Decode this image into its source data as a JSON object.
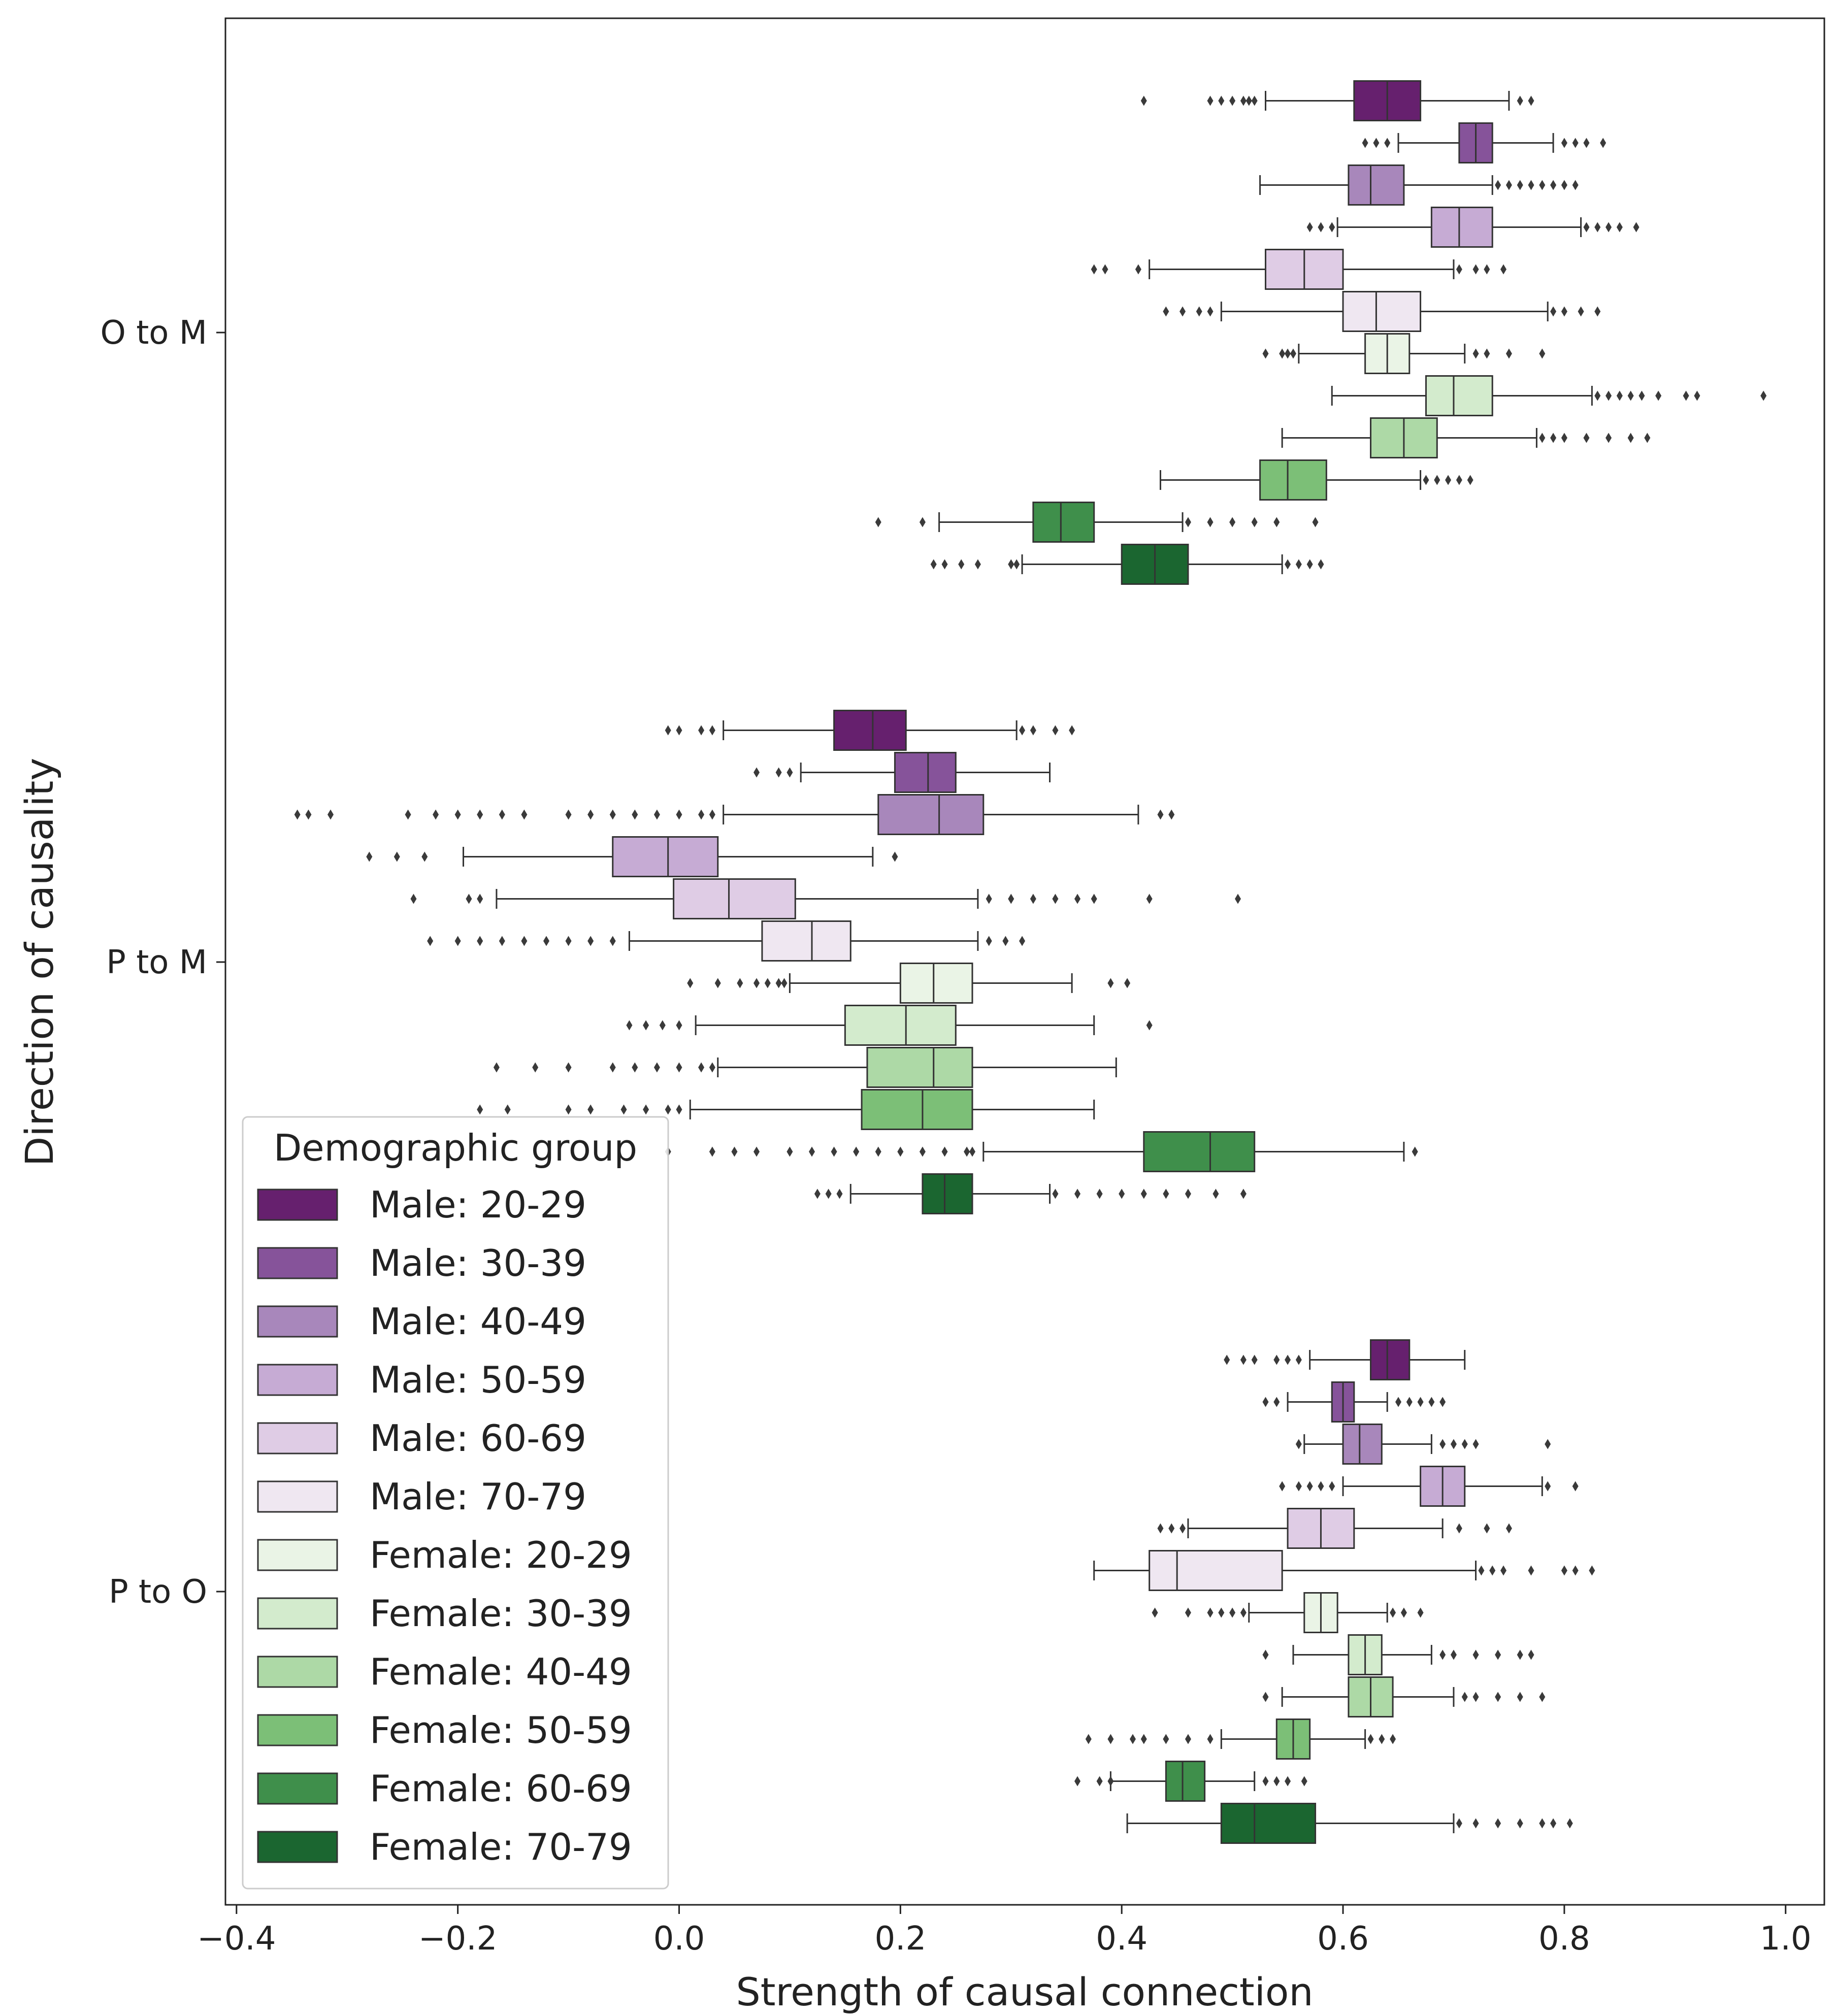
{
  "chart_data": {
    "type": "boxplot",
    "orientation": "horizontal",
    "title": "",
    "xlabel": "Strength of causal connection",
    "ylabel": "Direction of causality",
    "xlim": [
      -0.41,
      1.035
    ],
    "xticks": [
      -0.4,
      -0.2,
      0.0,
      0.2,
      0.4,
      0.6,
      0.8,
      1.0
    ],
    "xtick_labels": [
      "−0.4",
      "−0.2",
      "0.0",
      "0.2",
      "0.4",
      "0.6",
      "0.8",
      "1.0"
    ],
    "categories": [
      "O to M",
      "P to M",
      "P to O"
    ],
    "legend": {
      "title": "Demographic group",
      "placement": "lower-left"
    },
    "series": [
      {
        "name": "Male: 20-29",
        "color": "#66206e",
        "boxes": [
          {
            "whislo": 0.53,
            "q1": 0.61,
            "med": 0.64,
            "q3": 0.67,
            "whishi": 0.75,
            "fliers": [
              0.42,
              0.48,
              0.49,
              0.5,
              0.51,
              0.515,
              0.52,
              0.76,
              0.77
            ]
          },
          {
            "whislo": 0.04,
            "q1": 0.14,
            "med": 0.175,
            "q3": 0.205,
            "whishi": 0.305,
            "fliers": [
              -0.01,
              0.0,
              0.02,
              0.03,
              0.31,
              0.32,
              0.34,
              0.355
            ]
          },
          {
            "whislo": 0.57,
            "q1": 0.625,
            "med": 0.64,
            "q3": 0.66,
            "whishi": 0.71,
            "fliers": [
              0.495,
              0.51,
              0.52,
              0.54,
              0.55,
              0.56
            ]
          }
        ]
      },
      {
        "name": "Male: 30-39",
        "color": "#86539a",
        "boxes": [
          {
            "whislo": 0.65,
            "q1": 0.705,
            "med": 0.72,
            "q3": 0.735,
            "whishi": 0.79,
            "fliers": [
              0.62,
              0.63,
              0.64,
              0.8,
              0.81,
              0.82,
              0.835
            ]
          },
          {
            "whislo": 0.11,
            "q1": 0.195,
            "med": 0.225,
            "q3": 0.25,
            "whishi": 0.335,
            "fliers": [
              0.07,
              0.09,
              0.1
            ]
          },
          {
            "whislo": 0.55,
            "q1": 0.59,
            "med": 0.6,
            "q3": 0.61,
            "whishi": 0.64,
            "fliers": [
              0.53,
              0.54,
              0.65,
              0.66,
              0.67,
              0.68,
              0.69
            ]
          }
        ]
      },
      {
        "name": "Male: 40-49",
        "color": "#a887bb",
        "boxes": [
          {
            "whislo": 0.525,
            "q1": 0.605,
            "med": 0.625,
            "q3": 0.655,
            "whishi": 0.735,
            "fliers": [
              0.74,
              0.75,
              0.76,
              0.77,
              0.78,
              0.79,
              0.8,
              0.81
            ]
          },
          {
            "whislo": 0.04,
            "q1": 0.18,
            "med": 0.235,
            "q3": 0.275,
            "whishi": 0.415,
            "fliers": [
              -0.345,
              -0.335,
              -0.315,
              -0.245,
              -0.22,
              -0.2,
              -0.18,
              -0.16,
              -0.14,
              -0.1,
              -0.08,
              -0.06,
              -0.04,
              -0.02,
              0.0,
              0.02,
              0.03,
              0.435,
              0.445
            ]
          },
          {
            "whislo": 0.565,
            "q1": 0.6,
            "med": 0.615,
            "q3": 0.635,
            "whishi": 0.68,
            "fliers": [
              0.56,
              0.69,
              0.7,
              0.71,
              0.72,
              0.785
            ]
          }
        ]
      },
      {
        "name": "Male: 50-59",
        "color": "#c6abd4",
        "boxes": [
          {
            "whislo": 0.595,
            "q1": 0.68,
            "med": 0.705,
            "q3": 0.735,
            "whishi": 0.815,
            "fliers": [
              0.57,
              0.58,
              0.59,
              0.82,
              0.83,
              0.84,
              0.85,
              0.865
            ]
          },
          {
            "whislo": -0.195,
            "q1": -0.06,
            "med": -0.01,
            "q3": 0.035,
            "whishi": 0.175,
            "fliers": [
              -0.28,
              -0.255,
              -0.23,
              0.195
            ]
          },
          {
            "whislo": 0.6,
            "q1": 0.67,
            "med": 0.69,
            "q3": 0.71,
            "whishi": 0.78,
            "fliers": [
              0.545,
              0.56,
              0.57,
              0.58,
              0.59,
              0.785,
              0.81
            ]
          }
        ]
      },
      {
        "name": "Male: 60-69",
        "color": "#dfcce5",
        "boxes": [
          {
            "whislo": 0.425,
            "q1": 0.53,
            "med": 0.565,
            "q3": 0.6,
            "whishi": 0.7,
            "fliers": [
              0.375,
              0.385,
              0.415,
              0.705,
              0.72,
              0.73,
              0.745
            ]
          },
          {
            "whislo": -0.165,
            "q1": -0.005,
            "med": 0.045,
            "q3": 0.105,
            "whishi": 0.27,
            "fliers": [
              -0.24,
              -0.19,
              -0.18,
              0.28,
              0.3,
              0.32,
              0.34,
              0.36,
              0.375,
              0.425,
              0.505
            ]
          },
          {
            "whislo": 0.46,
            "q1": 0.55,
            "med": 0.58,
            "q3": 0.61,
            "whishi": 0.69,
            "fliers": [
              0.435,
              0.445,
              0.455,
              0.705,
              0.73,
              0.75
            ]
          }
        ]
      },
      {
        "name": "Male: 70-79",
        "color": "#efe7f1",
        "boxes": [
          {
            "whislo": 0.49,
            "q1": 0.6,
            "med": 0.63,
            "q3": 0.67,
            "whishi": 0.785,
            "fliers": [
              0.44,
              0.455,
              0.47,
              0.48,
              0.79,
              0.8,
              0.815,
              0.83
            ]
          },
          {
            "whislo": -0.045,
            "q1": 0.075,
            "med": 0.12,
            "q3": 0.155,
            "whishi": 0.27,
            "fliers": [
              -0.225,
              -0.2,
              -0.18,
              -0.16,
              -0.14,
              -0.12,
              -0.1,
              -0.08,
              -0.06,
              0.28,
              0.295,
              0.31
            ]
          },
          {
            "whislo": 0.375,
            "q1": 0.425,
            "med": 0.45,
            "q3": 0.545,
            "whishi": 0.72,
            "fliers": [
              0.725,
              0.735,
              0.745,
              0.77,
              0.8,
              0.81,
              0.825
            ]
          }
        ]
      },
      {
        "name": "Female: 20-29",
        "color": "#eaf4e6",
        "boxes": [
          {
            "whislo": 0.56,
            "q1": 0.62,
            "med": 0.64,
            "q3": 0.66,
            "whishi": 0.71,
            "fliers": [
              0.53,
              0.545,
              0.55,
              0.555,
              0.72,
              0.73,
              0.75,
              0.78
            ]
          },
          {
            "whislo": 0.1,
            "q1": 0.2,
            "med": 0.23,
            "q3": 0.265,
            "whishi": 0.355,
            "fliers": [
              0.01,
              0.035,
              0.055,
              0.07,
              0.08,
              0.09,
              0.095,
              0.39,
              0.405
            ]
          },
          {
            "whislo": 0.515,
            "q1": 0.565,
            "med": 0.58,
            "q3": 0.595,
            "whishi": 0.64,
            "fliers": [
              0.43,
              0.46,
              0.48,
              0.49,
              0.5,
              0.51,
              0.645,
              0.655,
              0.67
            ]
          }
        ]
      },
      {
        "name": "Female: 30-39",
        "color": "#d3ebcd",
        "boxes": [
          {
            "whislo": 0.59,
            "q1": 0.675,
            "med": 0.7,
            "q3": 0.735,
            "whishi": 0.825,
            "fliers": [
              0.83,
              0.84,
              0.85,
              0.86,
              0.87,
              0.885,
              0.91,
              0.92,
              0.98
            ]
          },
          {
            "whislo": 0.015,
            "q1": 0.15,
            "med": 0.205,
            "q3": 0.25,
            "whishi": 0.375,
            "fliers": [
              -0.045,
              -0.03,
              -0.015,
              0.0,
              0.425
            ]
          },
          {
            "whislo": 0.555,
            "q1": 0.605,
            "med": 0.62,
            "q3": 0.635,
            "whishi": 0.68,
            "fliers": [
              0.53,
              0.69,
              0.7,
              0.72,
              0.74,
              0.76,
              0.77
            ]
          }
        ]
      },
      {
        "name": "Female: 40-49",
        "color": "#add9a6",
        "boxes": [
          {
            "whislo": 0.545,
            "q1": 0.625,
            "med": 0.655,
            "q3": 0.685,
            "whishi": 0.775,
            "fliers": [
              0.78,
              0.79,
              0.8,
              0.82,
              0.84,
              0.86,
              0.875
            ]
          },
          {
            "whislo": 0.035,
            "q1": 0.17,
            "med": 0.23,
            "q3": 0.265,
            "whishi": 0.395,
            "fliers": [
              -0.165,
              -0.13,
              -0.1,
              -0.06,
              -0.04,
              -0.02,
              0.0,
              0.02,
              0.03
            ]
          },
          {
            "whislo": 0.545,
            "q1": 0.605,
            "med": 0.625,
            "q3": 0.645,
            "whishi": 0.7,
            "fliers": [
              0.53,
              0.71,
              0.72,
              0.74,
              0.76,
              0.78
            ]
          }
        ]
      },
      {
        "name": "Female: 50-59",
        "color": "#7cbf77",
        "boxes": [
          {
            "whislo": 0.435,
            "q1": 0.525,
            "med": 0.55,
            "q3": 0.585,
            "whishi": 0.67,
            "fliers": [
              0.675,
              0.685,
              0.695,
              0.705,
              0.715
            ]
          },
          {
            "whislo": 0.01,
            "q1": 0.165,
            "med": 0.22,
            "q3": 0.265,
            "whishi": 0.375,
            "fliers": [
              -0.18,
              -0.155,
              -0.1,
              -0.08,
              -0.05,
              -0.03,
              -0.01,
              0.0
            ]
          },
          {
            "whislo": 0.49,
            "q1": 0.54,
            "med": 0.555,
            "q3": 0.57,
            "whishi": 0.62,
            "fliers": [
              0.37,
              0.39,
              0.41,
              0.42,
              0.44,
              0.46,
              0.48,
              0.625,
              0.635,
              0.645
            ]
          }
        ]
      },
      {
        "name": "Female: 60-69",
        "color": "#3f8f4b",
        "boxes": [
          {
            "whislo": 0.235,
            "q1": 0.32,
            "med": 0.345,
            "q3": 0.375,
            "whishi": 0.455,
            "fliers": [
              0.18,
              0.22,
              0.46,
              0.48,
              0.5,
              0.52,
              0.54,
              0.575
            ]
          },
          {
            "whislo": 0.275,
            "q1": 0.42,
            "med": 0.48,
            "q3": 0.52,
            "whishi": 0.655,
            "fliers": [
              -0.01,
              0.03,
              0.05,
              0.07,
              0.1,
              0.12,
              0.14,
              0.16,
              0.18,
              0.2,
              0.22,
              0.24,
              0.26,
              0.265,
              0.665
            ]
          },
          {
            "whislo": 0.39,
            "q1": 0.44,
            "med": 0.455,
            "q3": 0.475,
            "whishi": 0.52,
            "fliers": [
              0.36,
              0.38,
              0.39,
              0.53,
              0.54,
              0.55,
              0.565
            ]
          }
        ]
      },
      {
        "name": "Female: 70-79",
        "color": "#1b6630",
        "boxes": [
          {
            "whislo": 0.31,
            "q1": 0.4,
            "med": 0.43,
            "q3": 0.46,
            "whishi": 0.545,
            "fliers": [
              0.23,
              0.24,
              0.255,
              0.27,
              0.3,
              0.305,
              0.55,
              0.56,
              0.57,
              0.58
            ]
          },
          {
            "whislo": 0.155,
            "q1": 0.22,
            "med": 0.24,
            "q3": 0.265,
            "whishi": 0.335,
            "fliers": [
              0.125,
              0.135,
              0.145,
              0.34,
              0.36,
              0.38,
              0.4,
              0.42,
              0.44,
              0.46,
              0.485,
              0.51
            ]
          },
          {
            "whislo": 0.405,
            "q1": 0.49,
            "med": 0.52,
            "q3": 0.575,
            "whishi": 0.7,
            "fliers": [
              0.705,
              0.72,
              0.74,
              0.76,
              0.78,
              0.79,
              0.805
            ]
          }
        ]
      }
    ]
  }
}
